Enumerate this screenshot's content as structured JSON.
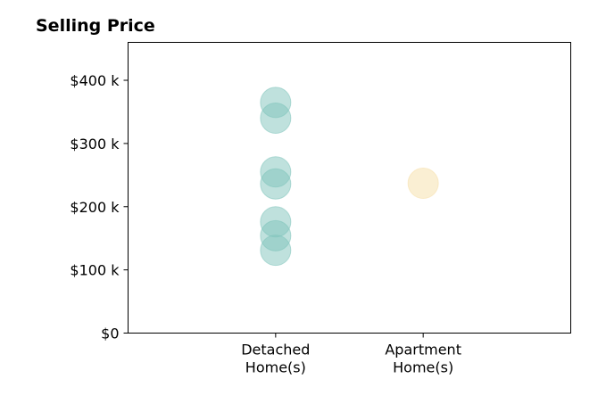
{
  "chart_data": {
    "type": "scatter",
    "title": "Selling Price",
    "xlabel": "",
    "ylabel": "",
    "categories": [
      "Detached\nHome(s)",
      "Apartment\nHome(s)"
    ],
    "xlim": [
      0,
      3
    ],
    "ylim": [
      0,
      400000
    ],
    "ymax": 460000,
    "yticks": [
      0,
      100000,
      200000,
      300000,
      400000
    ],
    "ytick_labels": [
      "$0",
      "$100 k",
      "$200 k",
      "$300 k",
      "$400 k"
    ],
    "grid": false,
    "series": [
      {
        "category_index": 0,
        "color": "#7fc4bc",
        "values": [
          365000,
          340000,
          255000,
          236000,
          176000,
          154000,
          131000
        ]
      },
      {
        "category_index": 1,
        "color": "#f5dfa8",
        "values": [
          237000
        ]
      }
    ]
  }
}
